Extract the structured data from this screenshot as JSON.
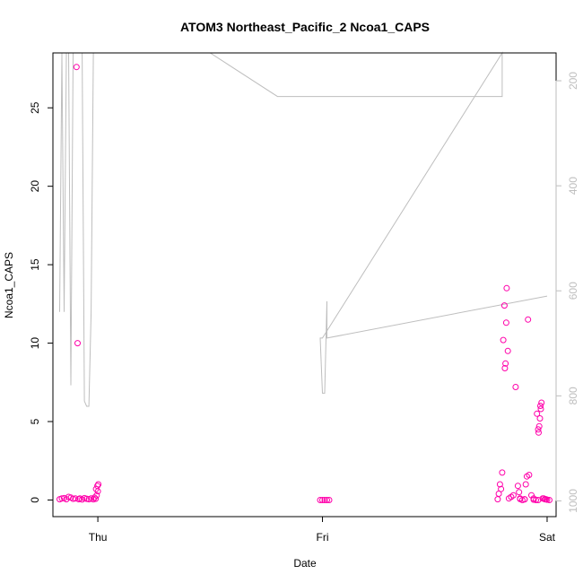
{
  "chart_data": {
    "type": "scatter",
    "title": "ATOM3 Northeast_Pacific_2 Ncoa1_CAPS",
    "xlabel": "Date",
    "ylabel": "Ncoa1_CAPS",
    "x_unit": "days since Thu 00:00",
    "xlim": [
      -0.2,
      2.04
    ],
    "ylim": [
      -1.06,
      28.5
    ],
    "x_ticks": [
      {
        "value": 0,
        "label": "Thu"
      },
      {
        "value": 1,
        "label": "Fri"
      },
      {
        "value": 2,
        "label": "Sat"
      }
    ],
    "y_ticks": [
      0,
      5,
      10,
      15,
      20,
      25
    ],
    "y2_lim": [
      1030,
      147
    ],
    "y2_ticks": [
      200,
      400,
      600,
      800,
      1000
    ],
    "colors": {
      "points": "#FF00AA",
      "depth_line": "#BEBEBE",
      "right_axis": "#BEBEBE"
    },
    "series": [
      {
        "kind": "points",
        "values": [
          [
            -0.17,
            0.05
          ],
          [
            -0.16,
            0.1
          ],
          [
            -0.15,
            0.12
          ],
          [
            -0.14,
            0.05
          ],
          [
            -0.13,
            0.2
          ],
          [
            -0.12,
            0.15
          ],
          [
            -0.11,
            0.08
          ],
          [
            -0.1,
            0.1
          ],
          [
            -0.095,
            27.6
          ],
          [
            -0.09,
            10.0
          ],
          [
            -0.085,
            0.05
          ],
          [
            -0.08,
            0.1
          ],
          [
            -0.07,
            0.03
          ],
          [
            -0.06,
            0.12
          ],
          [
            -0.05,
            0.08
          ],
          [
            -0.04,
            0.05
          ],
          [
            -0.03,
            0.1
          ],
          [
            -0.02,
            0.04
          ],
          [
            -0.015,
            0.15
          ],
          [
            -0.01,
            0.08
          ],
          [
            -0.005,
            0.3
          ],
          [
            0.0,
            0.55
          ],
          [
            -0.002,
            0.9
          ],
          [
            0.002,
            1.0
          ],
          [
            -0.008,
            0.7
          ],
          [
            0.99,
            0.0
          ],
          [
            1.0,
            0.0
          ],
          [
            1.01,
            0.0
          ],
          [
            1.02,
            0.0
          ],
          [
            1.03,
            0.0
          ],
          [
            1.78,
            0.05
          ],
          [
            1.785,
            0.4
          ],
          [
            1.79,
            1.0
          ],
          [
            1.795,
            0.7
          ],
          [
            1.8,
            1.75
          ],
          [
            1.805,
            10.2
          ],
          [
            1.81,
            12.4
          ],
          [
            1.812,
            8.4
          ],
          [
            1.815,
            8.7
          ],
          [
            1.818,
            11.3
          ],
          [
            1.82,
            13.5
          ],
          [
            1.825,
            9.5
          ],
          [
            1.83,
            0.1
          ],
          [
            1.84,
            0.2
          ],
          [
            1.85,
            0.3
          ],
          [
            1.86,
            7.2
          ],
          [
            1.87,
            0.9
          ],
          [
            1.875,
            0.5
          ],
          [
            1.88,
            0.1
          ],
          [
            1.89,
            0.0
          ],
          [
            1.9,
            0.05
          ],
          [
            1.905,
            1.0
          ],
          [
            1.91,
            1.5
          ],
          [
            1.915,
            11.5
          ],
          [
            1.92,
            1.6
          ],
          [
            1.93,
            0.3
          ],
          [
            1.94,
            0.1
          ],
          [
            1.95,
            0.0
          ],
          [
            1.955,
            5.5
          ],
          [
            1.96,
            4.5
          ],
          [
            1.962,
            4.3
          ],
          [
            1.965,
            4.7
          ],
          [
            1.968,
            5.2
          ],
          [
            1.97,
            6.0
          ],
          [
            1.972,
            5.8
          ],
          [
            1.975,
            6.2
          ],
          [
            1.98,
            0.1
          ],
          [
            1.99,
            0.05
          ],
          [
            2.0,
            0.02
          ],
          [
            2.01,
            0.0
          ],
          [
            1.995,
            0.05
          ],
          [
            1.985,
            0.1
          ],
          [
            1.96,
            0.0
          ],
          [
            1.94,
            0.02
          ],
          [
            1.9,
            0.04
          ],
          [
            1.88,
            0.06
          ]
        ]
      },
      {
        "kind": "depth-line",
        "values": [
          [
            -0.17,
            640
          ],
          [
            -0.16,
            147
          ],
          [
            -0.15,
            640
          ],
          [
            -0.14,
            147
          ],
          [
            -0.13,
            147
          ],
          [
            -0.12,
            780
          ],
          [
            -0.11,
            147
          ],
          [
            -0.1,
            147
          ],
          [
            -0.09,
            147
          ],
          [
            -0.08,
            147
          ],
          [
            -0.07,
            147
          ],
          [
            -0.06,
            810
          ],
          [
            -0.05,
            820
          ],
          [
            -0.04,
            820
          ],
          [
            -0.03,
            640
          ],
          [
            -0.02,
            147
          ],
          [
            0.0,
            147
          ],
          [
            0.5,
            147
          ],
          [
            0.8,
            230
          ],
          [
            1.8,
            230
          ],
          [
            1.8,
            230
          ],
          [
            1.8,
            147
          ],
          [
            1.0,
            690
          ],
          [
            0.99,
            690
          ],
          [
            1.0,
            795
          ],
          [
            1.01,
            795
          ],
          [
            1.02,
            620
          ],
          [
            1.02,
            690
          ],
          [
            2.0,
            610
          ]
        ]
      }
    ]
  }
}
